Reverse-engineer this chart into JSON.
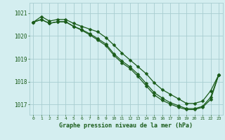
{
  "background_color": "#d4eef0",
  "grid_color": "#a8cdd0",
  "line_color": "#1a5c1a",
  "title": "Graphe pression niveau de la mer (hPa)",
  "ylim": [
    1016.55,
    1021.45
  ],
  "xlim": [
    -0.5,
    23.5
  ],
  "yticks": [
    1017,
    1018,
    1019,
    1020,
    1021
  ],
  "xticks": [
    0,
    1,
    2,
    3,
    4,
    5,
    6,
    7,
    8,
    9,
    10,
    11,
    12,
    13,
    14,
    15,
    16,
    17,
    18,
    19,
    20,
    21,
    22,
    23
  ],
  "series1": [
    1020.6,
    1020.85,
    1020.65,
    1020.72,
    1020.72,
    1020.55,
    1020.42,
    1020.3,
    1020.18,
    1019.93,
    1019.6,
    1019.25,
    1018.95,
    1018.65,
    1018.35,
    1017.95,
    1017.65,
    1017.45,
    1017.25,
    1017.05,
    1017.05,
    1017.15,
    1017.6,
    1018.3
  ],
  "series2": [
    1020.6,
    1020.72,
    1020.55,
    1020.62,
    1020.62,
    1020.42,
    1020.25,
    1020.05,
    1019.82,
    1019.58,
    1019.15,
    1018.82,
    1018.58,
    1018.22,
    1017.82,
    1017.42,
    1017.18,
    1017.02,
    1016.88,
    1016.78,
    1016.78,
    1016.88,
    1017.22,
    1018.3
  ],
  "series3": [
    1020.6,
    1020.72,
    1020.55,
    1020.62,
    1020.62,
    1020.42,
    1020.28,
    1020.1,
    1019.88,
    1019.65,
    1019.22,
    1018.9,
    1018.65,
    1018.32,
    1017.92,
    1017.52,
    1017.28,
    1017.08,
    1016.95,
    1016.82,
    1016.82,
    1016.92,
    1017.32,
    1018.3
  ]
}
